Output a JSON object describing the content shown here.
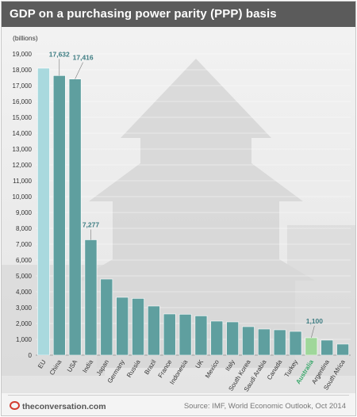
{
  "title": "GDP on a purchasing power parity (PPP) basis",
  "brand": "theconversation.com",
  "source": "Source: IMF, World Economic Outlook, Oct 2014",
  "colors": {
    "bar": "#5f9f9f",
    "bar_eu": "#a9d9de",
    "bar_highlight": "#9fd79a",
    "highlight_label": "#3aa86b",
    "axis_text": "#333333",
    "callout_text": "#3e7d83"
  },
  "chart_data": {
    "type": "bar",
    "ylabel": "(billions)",
    "ylim": [
      0,
      19000
    ],
    "yticks": [
      0,
      1000,
      2000,
      3000,
      4000,
      5000,
      6000,
      7000,
      8000,
      9000,
      10000,
      11000,
      12000,
      13000,
      14000,
      15000,
      16000,
      17000,
      18000,
      19000
    ],
    "ytick_labels": [
      "0",
      "1,000",
      "2,000",
      "3,000",
      "4,000",
      "5,000",
      "6,000",
      "7,000",
      "8,000",
      "9,000",
      "10,000",
      "11,000",
      "12,000",
      "13,000",
      "14,000",
      "15,000",
      "16,000",
      "17,000",
      "18,000",
      "19,000"
    ],
    "categories": [
      "EU",
      "China",
      "USA",
      "India",
      "Japan",
      "Germany",
      "Russia",
      "Brazil",
      "France",
      "Indonesia",
      "UK",
      "Mexico",
      "Italy",
      "South Korea",
      "Saudi Arabia",
      "Canada",
      "Turkey",
      "Australia",
      "Argentina",
      "South Africa"
    ],
    "values": [
      18100,
      17632,
      17416,
      7277,
      4800,
      3650,
      3580,
      3100,
      2600,
      2580,
      2480,
      2150,
      2100,
      1800,
      1650,
      1600,
      1500,
      1100,
      950,
      700
    ],
    "data_labels": [
      {
        "category": "China",
        "text": "17,632"
      },
      {
        "category": "USA",
        "text": "17,416"
      },
      {
        "category": "India",
        "text": "7,277"
      },
      {
        "category": "Australia",
        "text": "1,100"
      }
    ],
    "highlight": "Australia",
    "grid": true
  }
}
